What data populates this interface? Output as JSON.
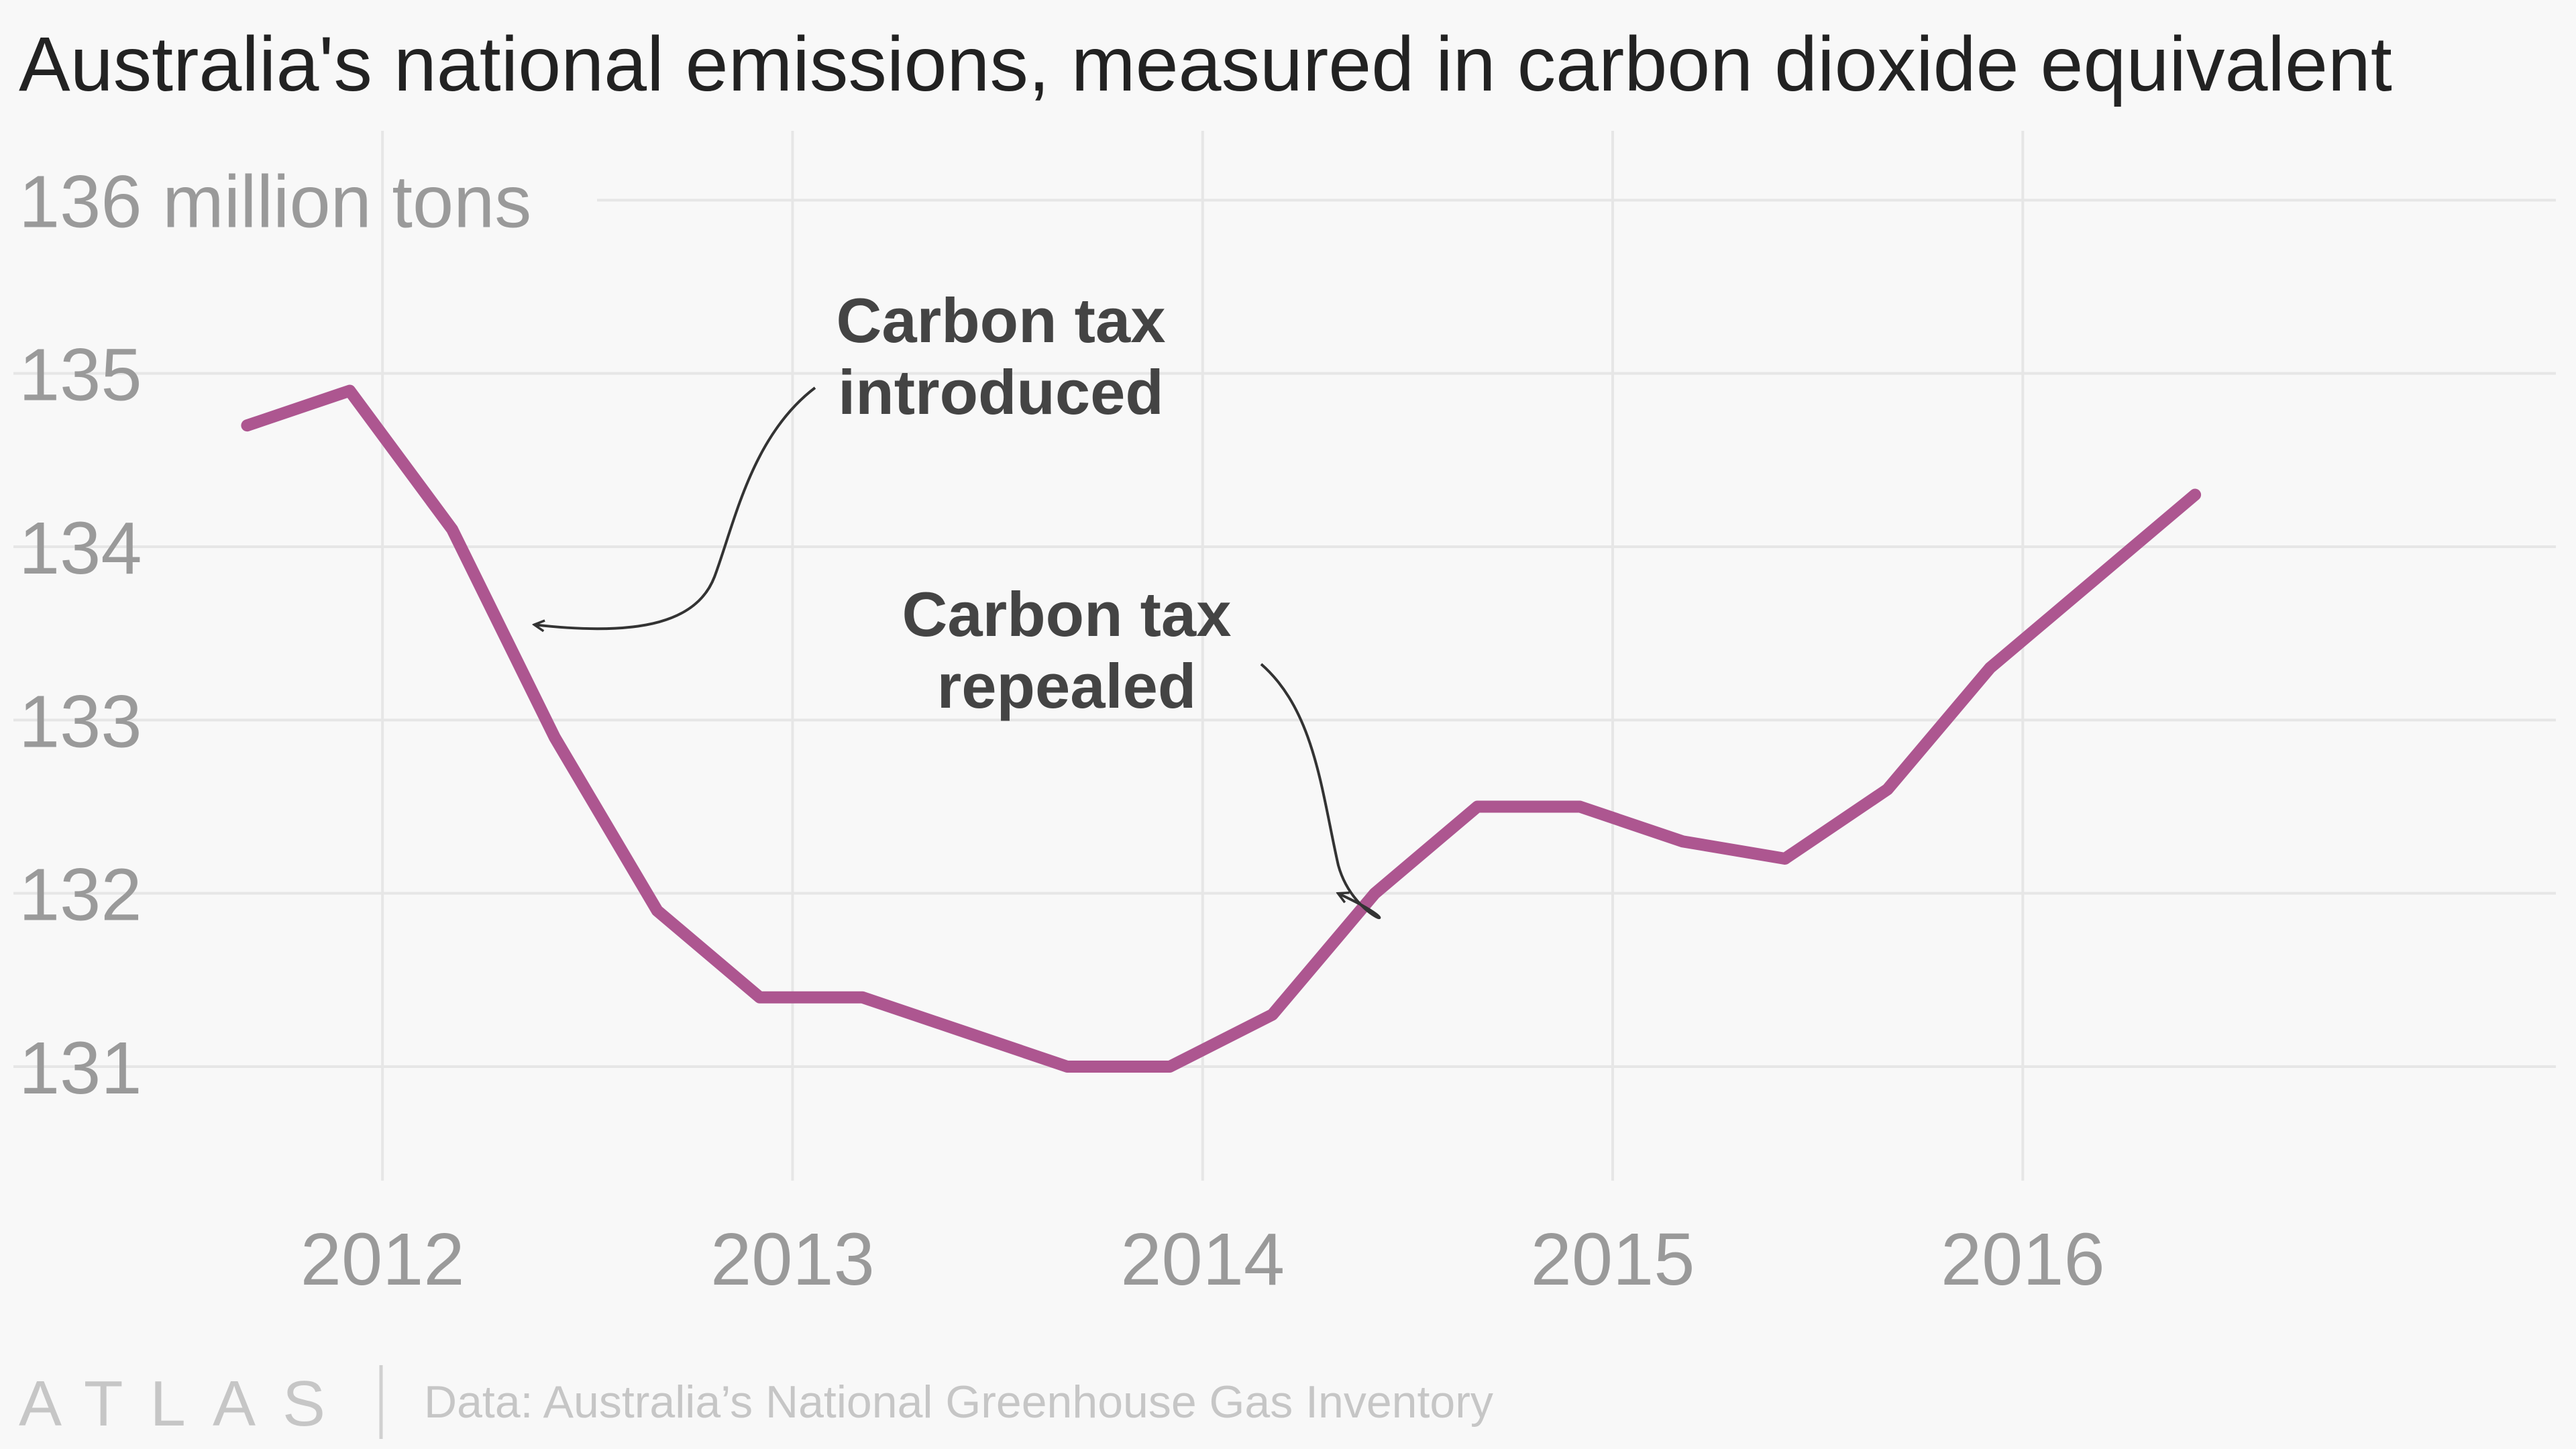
{
  "chart_data": {
    "type": "line",
    "title": "Australia's national emissions, measured in carbon dioxide equivalent",
    "xlabel": "",
    "ylabel": "",
    "y_top_label": "136 million tons",
    "y_ticks": [
      131,
      132,
      133,
      134,
      135,
      136
    ],
    "x_ticks": [
      2012,
      2013,
      2014,
      2015,
      2016
    ],
    "xlim": [
      2011.1,
      2017.3
    ],
    "ylim": [
      130.4,
      136.4
    ],
    "grid": true,
    "color": "#ad5690",
    "x": [
      2011.67,
      2011.92,
      2012.17,
      2012.42,
      2012.67,
      2012.92,
      2013.17,
      2013.42,
      2013.67,
      2013.92,
      2014.17,
      2014.42,
      2014.67,
      2014.92,
      2015.17,
      2015.42,
      2015.67,
      2015.92,
      2016.17,
      2016.42
    ],
    "y": [
      134.7,
      134.9,
      134.1,
      132.9,
      131.9,
      131.4,
      131.4,
      131.2,
      131.0,
      131.0,
      131.3,
      132.0,
      132.5,
      132.5,
      132.3,
      132.2,
      132.6,
      133.3,
      133.8,
      134.3
    ],
    "annotations": [
      {
        "lines": [
          "Carbon tax",
          "introduced"
        ],
        "target_x": 2012.37,
        "target_y": 133.55
      },
      {
        "lines": [
          "Carbon tax",
          "repealed"
        ],
        "target_x": 2014.33,
        "target_y": 132.0
      }
    ]
  },
  "footer": {
    "logo": "ATLAS",
    "source": "Data: Australia’s National Greenhouse Gas Inventory"
  }
}
